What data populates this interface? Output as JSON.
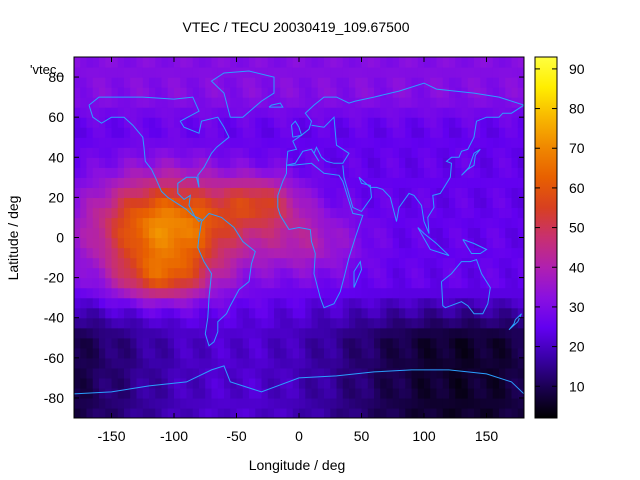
{
  "chart_data": {
    "type": "heatmap",
    "title": "VTEC / TECU 20030419_109.67500",
    "xlabel": "Longitude / deg",
    "ylabel": "Latitude / deg",
    "series_label": "'vtec_",
    "xlim": [
      -180,
      180
    ],
    "ylim": [
      -90,
      90
    ],
    "xticks": [
      -150,
      -100,
      -50,
      0,
      50,
      100,
      150
    ],
    "yticks": [
      -80,
      -60,
      -40,
      -20,
      0,
      20,
      40,
      60,
      80
    ],
    "colorbar": {
      "min": 2,
      "max": 93,
      "ticks": [
        10,
        20,
        30,
        40,
        50,
        60,
        70,
        80,
        90
      ]
    },
    "palette": [
      "#000000",
      "#1a0050",
      "#3a00a8",
      "#6200f0",
      "#8a10e0",
      "#b020b0",
      "#c83070",
      "#d84020",
      "#e86000",
      "#f08800",
      "#f8b800",
      "#ffee00",
      "#ffff40"
    ],
    "anomaly_peaks": [
      {
        "lon": -105,
        "lat": 5,
        "lat_sigma": 18,
        "lon_sigma": 42,
        "amp": 46
      },
      {
        "lon": -110,
        "lat": -20,
        "lat_sigma": 8,
        "lon_sigma": 25,
        "amp": 20
      },
      {
        "lon": -30,
        "lat": 18,
        "lat_sigma": 9,
        "lon_sigma": 22,
        "amp": 22
      },
      {
        "lon": 5,
        "lat": -2,
        "lat_sigma": 12,
        "lon_sigma": 30,
        "amp": 14
      }
    ],
    "background_vtec": 25,
    "southern_low_vtec": 6,
    "coastline_color": "#2aa0ff"
  }
}
